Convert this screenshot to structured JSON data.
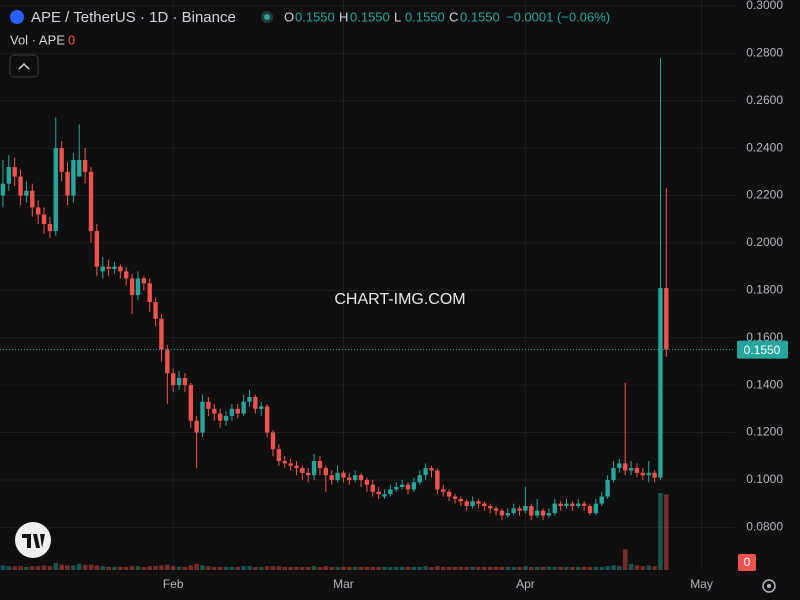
{
  "header": {
    "symbol": "APE / TetherUS · 1D · Binance",
    "ohlc": [
      {
        "key": "O",
        "value": "0.1550"
      },
      {
        "key": "H",
        "value": "0.1550"
      },
      {
        "key": "L",
        "value": "0.1550"
      },
      {
        "key": "C",
        "value": "0.1550"
      }
    ],
    "change": "−0.0001 (−0.06%)",
    "volume_label": "Vol · APE",
    "volume_value": "0"
  },
  "watermark": "CHART-IMG.COM",
  "chart_data": {
    "type": "candlestick",
    "up_color": "#26a69a",
    "down_color": "#ef5350",
    "open": [
      0.22,
      0.225,
      0.232,
      0.228,
      0.22,
      0.222,
      0.215,
      0.212,
      0.208,
      0.205,
      0.24,
      0.23,
      0.22,
      0.228,
      0.235,
      0.23,
      0.205,
      0.188,
      0.19,
      0.189,
      0.19,
      0.188,
      0.185,
      0.178,
      0.185,
      0.183,
      0.175,
      0.168,
      0.155,
      0.145,
      0.14,
      0.143,
      0.14,
      0.125,
      0.12,
      0.133,
      0.13,
      0.128,
      0.125,
      0.127,
      0.13,
      0.128,
      0.133,
      0.135,
      0.13,
      0.131,
      0.12,
      0.113,
      0.108,
      0.107,
      0.106,
      0.105,
      0.103,
      0.102,
      0.108,
      0.105,
      0.102,
      0.1,
      0.103,
      0.101,
      0.1,
      0.102,
      0.1,
      0.098,
      0.095,
      0.093,
      0.094,
      0.096,
      0.097,
      0.098,
      0.096,
      0.099,
      0.102,
      0.105,
      0.104,
      0.096,
      0.095,
      0.093,
      0.092,
      0.091,
      0.089,
      0.091,
      0.09,
      0.089,
      0.088,
      0.087,
      0.085,
      0.086,
      0.088,
      0.087,
      0.089,
      0.085,
      0.087,
      0.085,
      0.086,
      0.09,
      0.089,
      0.09,
      0.089,
      0.09,
      0.089,
      0.086,
      0.09,
      0.093,
      0.1,
      0.105,
      0.107,
      0.104,
      0.105,
      0.103,
      0.102,
      0.103,
      0.101,
      0.181
    ],
    "high": [
      0.235,
      0.237,
      0.236,
      0.231,
      0.226,
      0.225,
      0.218,
      0.215,
      0.211,
      0.253,
      0.243,
      0.234,
      0.238,
      0.25,
      0.24,
      0.232,
      0.208,
      0.194,
      0.193,
      0.192,
      0.191,
      0.19,
      0.187,
      0.188,
      0.186,
      0.185,
      0.177,
      0.17,
      0.157,
      0.147,
      0.146,
      0.145,
      0.141,
      0.127,
      0.136,
      0.135,
      0.132,
      0.13,
      0.129,
      0.132,
      0.132,
      0.136,
      0.138,
      0.136,
      0.133,
      0.132,
      0.121,
      0.115,
      0.11,
      0.109,
      0.108,
      0.106,
      0.105,
      0.111,
      0.11,
      0.106,
      0.104,
      0.106,
      0.104,
      0.103,
      0.104,
      0.103,
      0.101,
      0.1,
      0.097,
      0.096,
      0.098,
      0.099,
      0.1,
      0.099,
      0.101,
      0.104,
      0.107,
      0.106,
      0.105,
      0.098,
      0.096,
      0.094,
      0.093,
      0.092,
      0.093,
      0.092,
      0.091,
      0.09,
      0.089,
      0.088,
      0.088,
      0.09,
      0.089,
      0.097,
      0.09,
      0.092,
      0.088,
      0.088,
      0.092,
      0.091,
      0.092,
      0.091,
      0.092,
      0.091,
      0.09,
      0.092,
      0.095,
      0.102,
      0.108,
      0.109,
      0.141,
      0.108,
      0.107,
      0.105,
      0.108,
      0.104,
      0.278,
      0.223
    ],
    "low": [
      0.215,
      0.222,
      0.224,
      0.216,
      0.217,
      0.211,
      0.208,
      0.204,
      0.202,
      0.203,
      0.226,
      0.216,
      0.217,
      0.228,
      0.225,
      0.2,
      0.186,
      0.185,
      0.186,
      0.187,
      0.185,
      0.182,
      0.17,
      0.176,
      0.18,
      0.171,
      0.165,
      0.15,
      0.132,
      0.137,
      0.138,
      0.137,
      0.122,
      0.105,
      0.118,
      0.127,
      0.125,
      0.122,
      0.123,
      0.125,
      0.126,
      0.127,
      0.131,
      0.128,
      0.127,
      0.118,
      0.11,
      0.106,
      0.105,
      0.104,
      0.102,
      0.1,
      0.099,
      0.1,
      0.102,
      0.095,
      0.098,
      0.099,
      0.099,
      0.098,
      0.099,
      0.097,
      0.095,
      0.093,
      0.092,
      0.092,
      0.093,
      0.095,
      0.096,
      0.094,
      0.095,
      0.098,
      0.1,
      0.101,
      0.094,
      0.093,
      0.091,
      0.09,
      0.089,
      0.087,
      0.088,
      0.088,
      0.087,
      0.086,
      0.085,
      0.083,
      0.084,
      0.085,
      0.085,
      0.086,
      0.083,
      0.084,
      0.083,
      0.084,
      0.085,
      0.087,
      0.088,
      0.087,
      0.088,
      0.087,
      0.085,
      0.085,
      0.089,
      0.092,
      0.099,
      0.103,
      0.102,
      0.102,
      0.101,
      0.1,
      0.099,
      0.099,
      0.1,
      0.152
    ],
    "close": [
      0.225,
      0.232,
      0.228,
      0.22,
      0.222,
      0.215,
      0.212,
      0.208,
      0.205,
      0.24,
      0.23,
      0.22,
      0.235,
      0.235,
      0.23,
      0.205,
      0.19,
      0.19,
      0.189,
      0.19,
      0.188,
      0.185,
      0.178,
      0.185,
      0.183,
      0.175,
      0.168,
      0.155,
      0.145,
      0.14,
      0.143,
      0.14,
      0.125,
      0.12,
      0.133,
      0.13,
      0.128,
      0.125,
      0.127,
      0.13,
      0.128,
      0.133,
      0.135,
      0.13,
      0.131,
      0.12,
      0.113,
      0.108,
      0.107,
      0.106,
      0.105,
      0.103,
      0.102,
      0.108,
      0.105,
      0.102,
      0.1,
      0.103,
      0.101,
      0.1,
      0.102,
      0.1,
      0.098,
      0.095,
      0.094,
      0.094,
      0.096,
      0.097,
      0.098,
      0.096,
      0.099,
      0.102,
      0.105,
      0.104,
      0.096,
      0.095,
      0.093,
      0.092,
      0.091,
      0.089,
      0.091,
      0.09,
      0.089,
      0.088,
      0.087,
      0.085,
      0.086,
      0.088,
      0.087,
      0.089,
      0.085,
      0.087,
      0.085,
      0.086,
      0.09,
      0.089,
      0.09,
      0.089,
      0.09,
      0.089,
      0.086,
      0.09,
      0.093,
      0.1,
      0.105,
      0.107,
      0.104,
      0.105,
      0.103,
      0.102,
      0.103,
      0.101,
      0.181,
      0.155
    ],
    "volume": [
      6,
      5,
      5,
      5,
      4,
      5,
      5,
      6,
      5,
      9,
      7,
      6,
      6,
      8,
      7,
      7,
      6,
      5,
      4,
      4,
      4,
      4,
      5,
      5,
      4,
      5,
      5,
      6,
      7,
      5,
      4,
      4,
      6,
      8,
      6,
      5,
      4,
      4,
      4,
      4,
      4,
      5,
      5,
      4,
      4,
      5,
      5,
      5,
      4,
      4,
      4,
      4,
      4,
      5,
      4,
      5,
      4,
      4,
      4,
      4,
      4,
      4,
      4,
      4,
      4,
      4,
      4,
      4,
      4,
      4,
      4,
      4,
      5,
      4,
      5,
      4,
      4,
      4,
      4,
      4,
      4,
      4,
      4,
      4,
      4,
      4,
      4,
      4,
      4,
      5,
      4,
      4,
      4,
      4,
      4,
      4,
      4,
      4,
      4,
      4,
      4,
      4,
      4,
      5,
      6,
      5,
      27,
      8,
      6,
      5,
      6,
      5,
      100,
      98
    ],
    "xlim": [
      -0.5,
      124.7
    ],
    "xticks": [
      {
        "value": 29,
        "label": "Feb"
      },
      {
        "value": 58,
        "label": "Mar"
      },
      {
        "value": 89,
        "label": "Apr"
      },
      {
        "value": 119,
        "label": "May"
      }
    ],
    "ylim": [
      0.062,
      0.3025
    ],
    "yticks": [
      {
        "value": 0.08,
        "label": "0.0800"
      },
      {
        "value": 0.1,
        "label": "0.1000"
      },
      {
        "value": 0.12,
        "label": "0.1200"
      },
      {
        "value": 0.14,
        "label": "0.1400"
      },
      {
        "value": 0.16,
        "label": "0.1600"
      },
      {
        "value": 0.18,
        "label": "0.1800"
      },
      {
        "value": 0.2,
        "label": "0.2000"
      },
      {
        "value": 0.22,
        "label": "0.2200"
      },
      {
        "value": 0.24,
        "label": "0.2400"
      },
      {
        "value": 0.26,
        "label": "0.2600"
      },
      {
        "value": 0.28,
        "label": "0.2800"
      },
      {
        "value": 0.3,
        "label": "0.3000"
      }
    ],
    "last_price": {
      "value": 0.155,
      "label": "0.1550"
    },
    "grid": true
  }
}
